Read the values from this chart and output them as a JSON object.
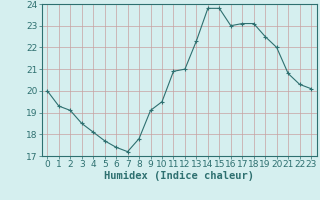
{
  "x": [
    0,
    1,
    2,
    3,
    4,
    5,
    6,
    7,
    8,
    9,
    10,
    11,
    12,
    13,
    14,
    15,
    16,
    17,
    18,
    19,
    20,
    21,
    22,
    23
  ],
  "y": [
    20.0,
    19.3,
    19.1,
    18.5,
    18.1,
    17.7,
    17.4,
    17.2,
    17.8,
    19.1,
    19.5,
    20.9,
    21.0,
    22.3,
    23.8,
    23.8,
    23.0,
    23.1,
    23.1,
    22.5,
    22.0,
    20.8,
    20.3,
    20.1
  ],
  "line_color": "#2e7070",
  "marker": "+",
  "marker_size": 3,
  "bg_color": "#d5efef",
  "grid_color": "#c8a0a0",
  "xlabel": "Humidex (Indice chaleur)",
  "ylim": [
    17,
    24
  ],
  "xlim": [
    -0.5,
    23.5
  ],
  "yticks": [
    17,
    18,
    19,
    20,
    21,
    22,
    23,
    24
  ],
  "xticks": [
    0,
    1,
    2,
    3,
    4,
    5,
    6,
    7,
    8,
    9,
    10,
    11,
    12,
    13,
    14,
    15,
    16,
    17,
    18,
    19,
    20,
    21,
    22,
    23
  ],
  "tick_fontsize": 6.5,
  "xlabel_fontsize": 7.5,
  "line_width": 0.8,
  "marker_edge_width": 0.8
}
